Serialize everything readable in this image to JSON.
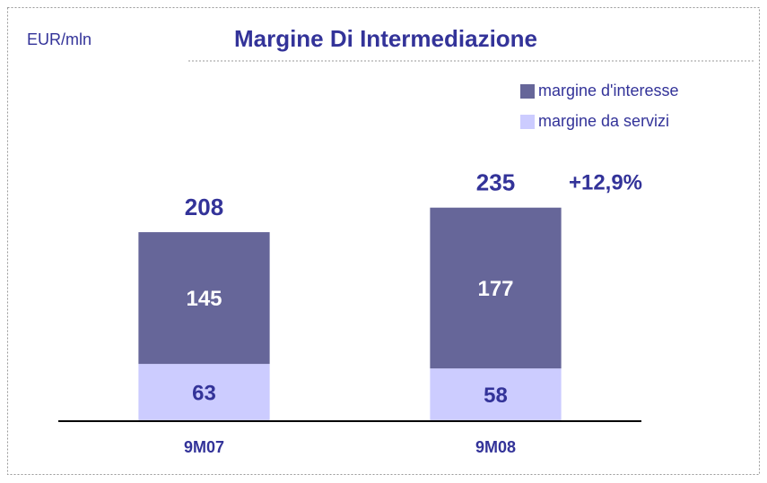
{
  "chart_data": {
    "type": "stacked_bar",
    "title": "Margine Di Intermediazione",
    "unit_label": "EUR/mln",
    "categories": [
      "9M07",
      "9M08"
    ],
    "series": [
      {
        "name": "margine da servizi",
        "color": "#ccccff",
        "values": [
          63,
          58
        ]
      },
      {
        "name": "margine d'interesse",
        "color": "#666699",
        "values": [
          145,
          177
        ]
      }
    ],
    "totals": [
      208,
      235
    ],
    "annotation": "+12,9%",
    "ylim": [
      0,
      250
    ]
  }
}
